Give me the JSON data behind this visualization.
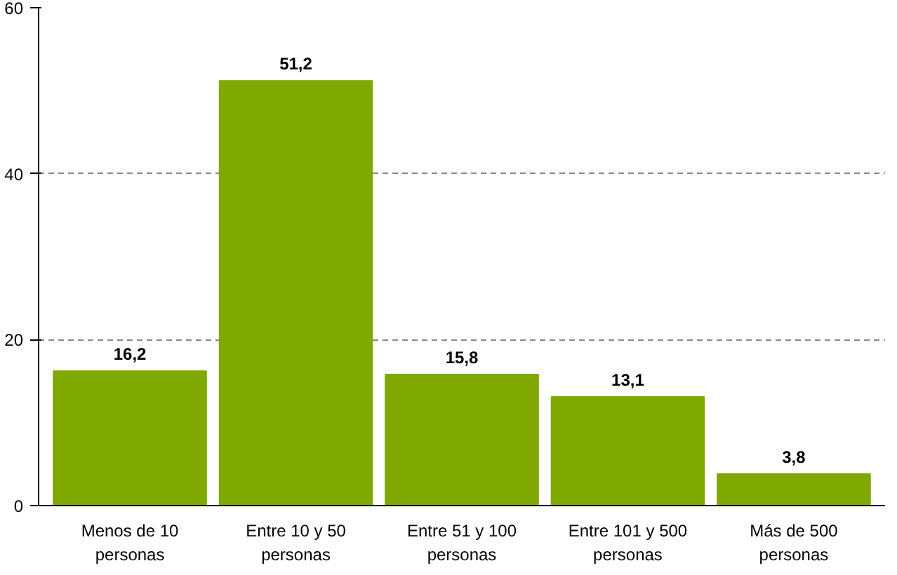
{
  "chart_data": {
    "type": "bar",
    "categories": [
      "Menos de 10 personas",
      "Entre 10 y 50 personas",
      "Entre 51 y 100 personas",
      "Entre 101 y 500 personas",
      "Más de 500 personas"
    ],
    "values": [
      16.2,
      51.2,
      15.8,
      13.1,
      3.8
    ],
    "value_labels": [
      "16,2",
      "51,2",
      "15,8",
      "13,1",
      "3,8"
    ],
    "color": "#7fa800",
    "ylim": [
      0,
      60
    ],
    "yticks": [
      0,
      20,
      40,
      60
    ],
    "grid": "y"
  }
}
